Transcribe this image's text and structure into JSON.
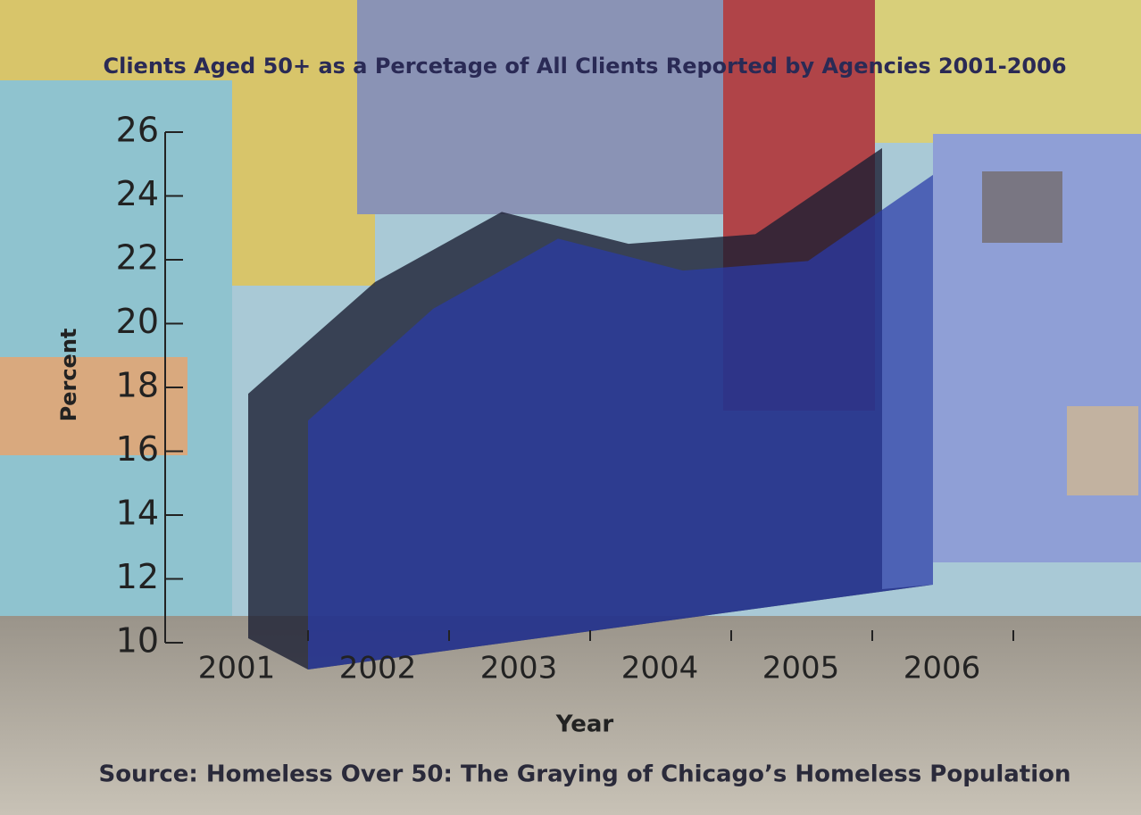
{
  "chart_data": {
    "type": "area",
    "title": "Clients Aged 50+ as a Percetage of All Clients Reported by Agencies 2001-2006",
    "x_label": "Year",
    "y_label": "Percent",
    "source": "Source: Homeless Over 50: The Graying of Chicago’s Homeless Population",
    "categories": [
      "2001",
      "2002",
      "2003",
      "2004",
      "2005",
      "2006"
    ],
    "values": [
      17.8,
      21.3,
      23.5,
      22.5,
      22.8,
      25.5
    ],
    "color": "#2a3aa8",
    "ylim": [
      10,
      26
    ],
    "yticks": [
      10,
      12,
      14,
      16,
      18,
      20,
      22,
      24,
      26
    ]
  }
}
